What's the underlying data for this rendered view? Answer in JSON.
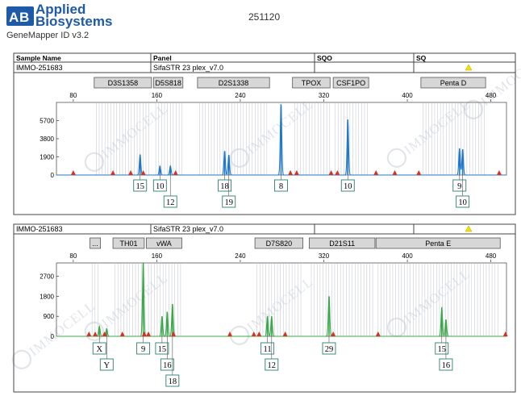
{
  "header": {
    "brand_line1": "Applied",
    "brand_line2": "Biosystems",
    "software": "GeneMapper ID v3.2",
    "run_id": "251120"
  },
  "columns": [
    "Sample Name",
    "Panel",
    "SQO",
    "SQ"
  ],
  "watermark": "IMMOCELL",
  "colors": {
    "blue_trace": "#1f77c8",
    "green_trace": "#3aa84a",
    "marker": "#d9301f",
    "warning": "#f2e200",
    "frame": "#444444",
    "bin_line": "#c9ccd6"
  },
  "chart_data": [
    {
      "type": "line",
      "dye": "blue",
      "sample_name": "IMMO-251683",
      "panel": "SifaSTR 23 plex_v7.0",
      "xlim": [
        60,
        495
      ],
      "x_ticks": [
        80,
        160,
        240,
        320,
        400,
        480
      ],
      "ylim": [
        0,
        7600
      ],
      "y_ticks": [
        0,
        1900,
        3800,
        5700
      ],
      "markers": [
        {
          "label": "D3S1358",
          "start": 100,
          "end": 155
        },
        {
          "label": "D5S818",
          "start": 157,
          "end": 185
        },
        {
          "label": "D2S1338",
          "start": 199,
          "end": 268
        },
        {
          "label": "TPOX",
          "start": 290,
          "end": 326
        },
        {
          "label": "CSF1PO",
          "start": 329,
          "end": 363
        },
        {
          "label": "Penta D",
          "start": 413,
          "end": 475
        }
      ],
      "peaks": [
        {
          "x": 144,
          "height": 2150
        },
        {
          "x": 163,
          "height": 950
        },
        {
          "x": 173,
          "height": 950
        },
        {
          "x": 225,
          "height": 2500
        },
        {
          "x": 229,
          "height": 2100
        },
        {
          "x": 279,
          "height": 7400
        },
        {
          "x": 343,
          "height": 5800
        },
        {
          "x": 450,
          "height": 2800
        },
        {
          "x": 453,
          "height": 2700
        }
      ],
      "size_standard_x": [
        80,
        118,
        135,
        147,
        178,
        288,
        294,
        327,
        333,
        370,
        388,
        411,
        488
      ],
      "allele_calls": [
        {
          "label": "15",
          "x": 144,
          "row": 1
        },
        {
          "label": "10",
          "x": 163,
          "row": 1
        },
        {
          "label": "12",
          "x": 173,
          "row": 2
        },
        {
          "label": "18",
          "x": 225,
          "row": 1
        },
        {
          "label": "19",
          "x": 229,
          "row": 2
        },
        {
          "label": "8",
          "x": 279,
          "row": 1
        },
        {
          "label": "10",
          "x": 343,
          "row": 1
        },
        {
          "label": "9",
          "x": 450,
          "row": 1
        },
        {
          "label": "10",
          "x": 453,
          "row": 2
        }
      ]
    },
    {
      "type": "line",
      "dye": "green",
      "sample_name": "IMMO-251683",
      "panel": "SifaSTR 23 plex_v7.0",
      "xlim": [
        60,
        495
      ],
      "x_ticks": [
        80,
        160,
        240,
        320,
        400,
        480
      ],
      "ylim": [
        0,
        3300
      ],
      "y_ticks": [
        0,
        900,
        1800,
        2700
      ],
      "markers": [
        {
          "label": "...",
          "start": 96,
          "end": 106
        },
        {
          "label": "TH01",
          "start": 118,
          "end": 148
        },
        {
          "label": "vWA",
          "start": 150,
          "end": 184
        },
        {
          "label": "D7S820",
          "start": 254,
          "end": 300
        },
        {
          "label": "D21S11",
          "start": 306,
          "end": 369
        },
        {
          "label": "Penta E",
          "start": 370,
          "end": 489
        }
      ],
      "peaks": [
        {
          "x": 105,
          "height": 450
        },
        {
          "x": 112,
          "height": 350
        },
        {
          "x": 147,
          "height": 3300
        },
        {
          "x": 165,
          "height": 900
        },
        {
          "x": 170,
          "height": 1100
        },
        {
          "x": 175,
          "height": 1450
        },
        {
          "x": 266,
          "height": 900
        },
        {
          "x": 270,
          "height": 900
        },
        {
          "x": 325,
          "height": 1800
        },
        {
          "x": 433,
          "height": 1300
        },
        {
          "x": 437,
          "height": 750
        }
      ],
      "size_standard_x": [
        95,
        101,
        110,
        127,
        148,
        152,
        176,
        230,
        253,
        258,
        283,
        329,
        372,
        494
      ],
      "allele_calls": [
        {
          "label": "X",
          "x": 105,
          "row": 1
        },
        {
          "label": "Y",
          "x": 112,
          "row": 2
        },
        {
          "label": "9",
          "x": 147,
          "row": 1
        },
        {
          "label": "15",
          "x": 165,
          "row": 1
        },
        {
          "label": "16",
          "x": 170,
          "row": 2
        },
        {
          "label": "18",
          "x": 175,
          "row": 3
        },
        {
          "label": "11",
          "x": 266,
          "row": 1
        },
        {
          "label": "12",
          "x": 270,
          "row": 2
        },
        {
          "label": "29",
          "x": 325,
          "row": 1
        },
        {
          "label": "15",
          "x": 433,
          "row": 1
        },
        {
          "label": "16",
          "x": 437,
          "row": 2
        }
      ]
    }
  ]
}
